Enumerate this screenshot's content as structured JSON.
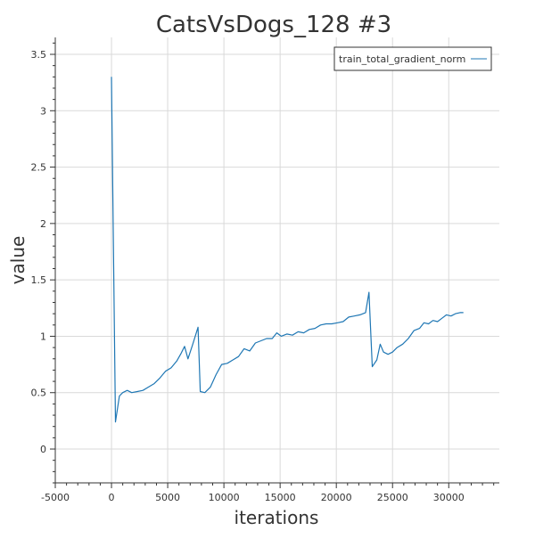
{
  "chart_data": {
    "type": "line",
    "title": "CatsVsDogs_128 #3",
    "xlabel": "iterations",
    "ylabel": "value",
    "xlim": [
      -5000,
      34500
    ],
    "ylim": [
      -0.3,
      3.65
    ],
    "x_ticks": [
      -5000,
      0,
      5000,
      10000,
      15000,
      20000,
      25000,
      30000
    ],
    "x_tick_labels": [
      "-5000",
      "0",
      "5000",
      "10000",
      "15000",
      "20000",
      "25000",
      "30000"
    ],
    "y_ticks": [
      0,
      0.5,
      1,
      1.5,
      2,
      2.5,
      3,
      3.5
    ],
    "y_tick_labels": [
      "0",
      "0.5",
      "1",
      "1.5",
      "2",
      "2.5",
      "3",
      "3.5"
    ],
    "grid": true,
    "legend_position": "top-right",
    "series": [
      {
        "name": "train_total_gradient_norm",
        "color": "#1f77b4",
        "points": [
          [
            0,
            3.3
          ],
          [
            350,
            0.24
          ],
          [
            700,
            0.47
          ],
          [
            1000,
            0.5
          ],
          [
            1400,
            0.52
          ],
          [
            1800,
            0.5
          ],
          [
            2300,
            0.51
          ],
          [
            2800,
            0.52
          ],
          [
            3300,
            0.55
          ],
          [
            3800,
            0.58
          ],
          [
            4300,
            0.63
          ],
          [
            4800,
            0.69
          ],
          [
            5300,
            0.72
          ],
          [
            5800,
            0.78
          ],
          [
            6200,
            0.85
          ],
          [
            6500,
            0.91
          ],
          [
            6800,
            0.8
          ],
          [
            7200,
            0.92
          ],
          [
            7700,
            1.08
          ],
          [
            7900,
            0.51
          ],
          [
            8300,
            0.5
          ],
          [
            8800,
            0.55
          ],
          [
            9300,
            0.66
          ],
          [
            9800,
            0.75
          ],
          [
            10300,
            0.76
          ],
          [
            10800,
            0.79
          ],
          [
            11300,
            0.82
          ],
          [
            11800,
            0.89
          ],
          [
            12300,
            0.87
          ],
          [
            12800,
            0.94
          ],
          [
            13300,
            0.96
          ],
          [
            13800,
            0.98
          ],
          [
            14300,
            0.98
          ],
          [
            14700,
            1.03
          ],
          [
            15100,
            1.0
          ],
          [
            15600,
            1.02
          ],
          [
            16100,
            1.01
          ],
          [
            16600,
            1.04
          ],
          [
            17100,
            1.03
          ],
          [
            17600,
            1.06
          ],
          [
            18100,
            1.07
          ],
          [
            18600,
            1.1
          ],
          [
            19100,
            1.11
          ],
          [
            19600,
            1.11
          ],
          [
            20100,
            1.12
          ],
          [
            20600,
            1.13
          ],
          [
            21100,
            1.17
          ],
          [
            21600,
            1.18
          ],
          [
            22100,
            1.19
          ],
          [
            22600,
            1.21
          ],
          [
            22900,
            1.39
          ],
          [
            23200,
            0.73
          ],
          [
            23600,
            0.79
          ],
          [
            23900,
            0.93
          ],
          [
            24200,
            0.86
          ],
          [
            24600,
            0.84
          ],
          [
            25000,
            0.86
          ],
          [
            25400,
            0.9
          ],
          [
            25900,
            0.93
          ],
          [
            26400,
            0.98
          ],
          [
            26900,
            1.05
          ],
          [
            27400,
            1.07
          ],
          [
            27800,
            1.12
          ],
          [
            28200,
            1.11
          ],
          [
            28600,
            1.14
          ],
          [
            29000,
            1.13
          ],
          [
            29400,
            1.16
          ],
          [
            29800,
            1.19
          ],
          [
            30200,
            1.18
          ],
          [
            30600,
            1.2
          ],
          [
            31000,
            1.21
          ],
          [
            31300,
            1.21
          ]
        ]
      }
    ]
  }
}
